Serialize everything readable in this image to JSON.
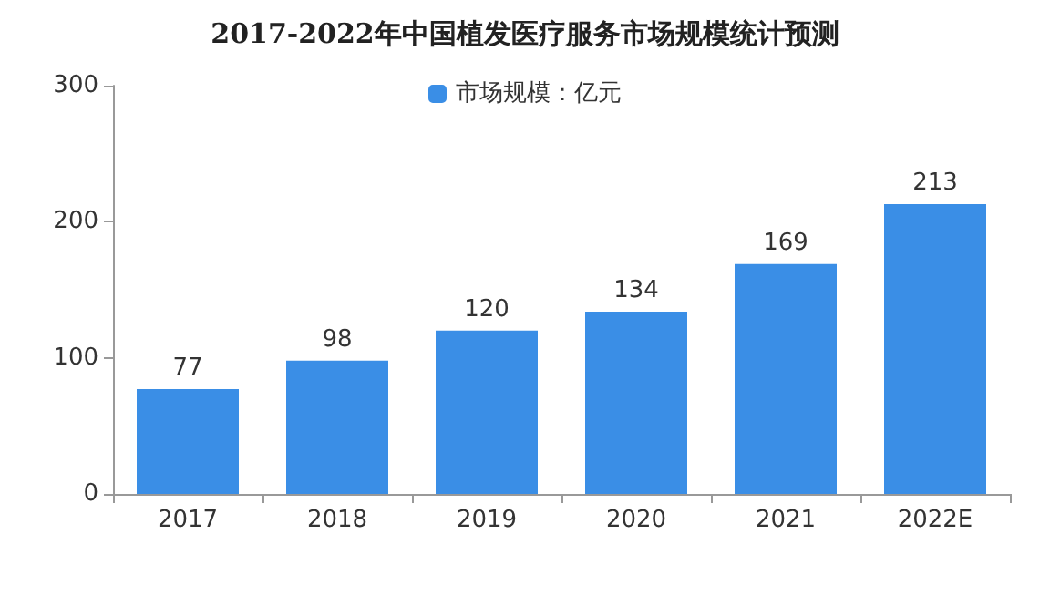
{
  "chart_data": {
    "type": "bar",
    "title": "2017-2022年中国植发医疗服务市场规模统计预测",
    "categories": [
      "2017",
      "2018",
      "2019",
      "2020",
      "2021",
      "2022E"
    ],
    "series": [
      {
        "name": "市场规模：亿元",
        "color": "#3a8ee6",
        "values": [
          77,
          98,
          120,
          134,
          169,
          213
        ]
      }
    ],
    "ylim": [
      0,
      300
    ],
    "yticks": [
      0,
      100,
      200,
      300
    ],
    "grid": false,
    "legend": "top",
    "data_labels": true
  }
}
